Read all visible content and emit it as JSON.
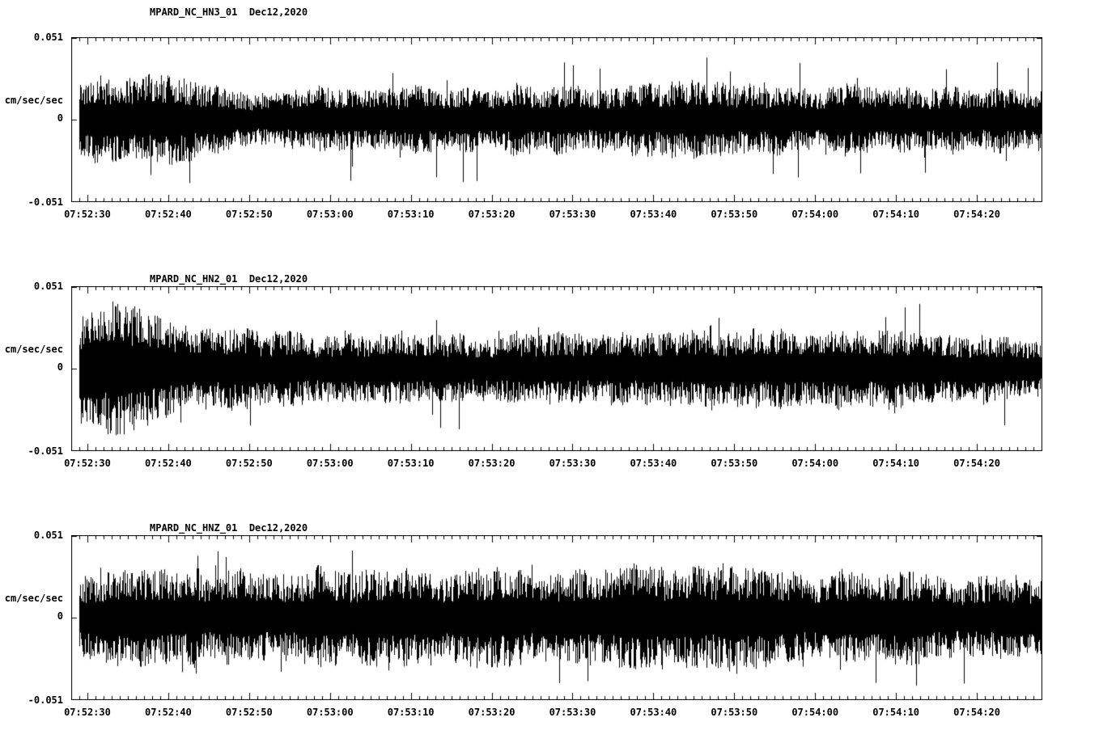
{
  "page": {
    "background": "#ffffff",
    "foreground": "#000000"
  },
  "chart_data": [
    {
      "type": "line",
      "chart_kind": "seismogram",
      "title": "MPARD_NC_HN3_01  Dec12,2020",
      "station": "MPARD_NC_HN3_01",
      "date_label": "Dec12,2020",
      "ylabel": "cm/sec/sec",
      "ylim": [
        -0.051,
        0.051
      ],
      "yticks": [
        0.051,
        0,
        -0.051
      ],
      "ytick_labels": [
        "0.051",
        "0",
        "-0.051"
      ],
      "x_axis": {
        "range_sec": 120,
        "first_tick_sec": 2,
        "tick_step_sec": 10,
        "minor_step_sec": 1
      },
      "xtick_labels": [
        "07:52:30",
        "07:52:40",
        "07:52:50",
        "07:53:00",
        "07:53:10",
        "07:53:20",
        "07:53:30",
        "07:53:40",
        "07:53:50",
        "07:54:00",
        "07:54:10",
        "07:54:20"
      ],
      "line_color": "#000000",
      "grid": false,
      "waveform": {
        "kind": "broadband-noise",
        "seed": 17,
        "start_frac": 0.008,
        "spike_prob": 0.02,
        "spike_amp": 0.04,
        "amp_profile": [
          [
            0,
            0.021
          ],
          [
            0.03,
            0.028
          ],
          [
            0.08,
            0.022
          ],
          [
            0.15,
            0.018
          ],
          [
            0.3,
            0.017
          ],
          [
            0.5,
            0.018
          ],
          [
            0.65,
            0.02
          ],
          [
            0.8,
            0.019
          ],
          [
            1,
            0.018
          ]
        ]
      }
    },
    {
      "type": "line",
      "chart_kind": "seismogram",
      "title": "MPARD_NC_HN2_01  Dec12,2020",
      "station": "MPARD_NC_HN2_01",
      "date_label": "Dec12,2020",
      "ylabel": "cm/sec/sec",
      "ylim": [
        -0.051,
        0.051
      ],
      "yticks": [
        0.051,
        0,
        -0.051
      ],
      "ytick_labels": [
        "0.051",
        "0",
        "-0.051"
      ],
      "x_axis": {
        "range_sec": 120,
        "first_tick_sec": 2,
        "tick_step_sec": 10,
        "minor_step_sec": 1
      },
      "xtick_labels": [
        "07:52:30",
        "07:52:40",
        "07:52:50",
        "07:53:00",
        "07:53:10",
        "07:53:20",
        "07:53:30",
        "07:53:40",
        "07:53:50",
        "07:54:00",
        "07:54:10",
        "07:54:20"
      ],
      "line_color": "#000000",
      "grid": false,
      "waveform": {
        "kind": "broadband-noise",
        "seed": 29,
        "start_frac": 0.008,
        "spike_prob": 0.018,
        "spike_amp": 0.042,
        "amp_profile": [
          [
            0,
            0.028
          ],
          [
            0.04,
            0.038
          ],
          [
            0.08,
            0.03
          ],
          [
            0.13,
            0.022
          ],
          [
            0.25,
            0.019
          ],
          [
            0.4,
            0.018
          ],
          [
            0.55,
            0.019
          ],
          [
            0.7,
            0.021
          ],
          [
            0.85,
            0.02
          ],
          [
            1,
            0.016
          ]
        ]
      }
    },
    {
      "type": "line",
      "chart_kind": "seismogram",
      "title": "MPARD_NC_HNZ_01  Dec12,2020",
      "station": "MPARD_NC_HNZ_01",
      "date_label": "Dec12,2020",
      "ylabel": "cm/sec/sec",
      "ylim": [
        -0.051,
        0.051
      ],
      "yticks": [
        0.051,
        0,
        -0.051
      ],
      "ytick_labels": [
        "0.051",
        "0",
        "-0.051"
      ],
      "x_axis": {
        "range_sec": 120,
        "first_tick_sec": 2,
        "tick_step_sec": 10,
        "minor_step_sec": 1
      },
      "xtick_labels": [
        "07:52:30",
        "07:52:40",
        "07:52:50",
        "07:53:00",
        "07:53:10",
        "07:53:20",
        "07:53:30",
        "07:53:40",
        "07:53:50",
        "07:54:00",
        "07:54:10",
        "07:54:20"
      ],
      "line_color": "#000000",
      "grid": false,
      "waveform": {
        "kind": "broadband-noise",
        "seed": 43,
        "start_frac": 0.008,
        "spike_prob": 0.025,
        "spike_amp": 0.043,
        "amp_profile": [
          [
            0,
            0.021
          ],
          [
            0.08,
            0.026
          ],
          [
            0.2,
            0.024
          ],
          [
            0.35,
            0.025
          ],
          [
            0.5,
            0.026
          ],
          [
            0.65,
            0.027
          ],
          [
            0.8,
            0.025
          ],
          [
            1,
            0.022
          ]
        ]
      }
    }
  ]
}
